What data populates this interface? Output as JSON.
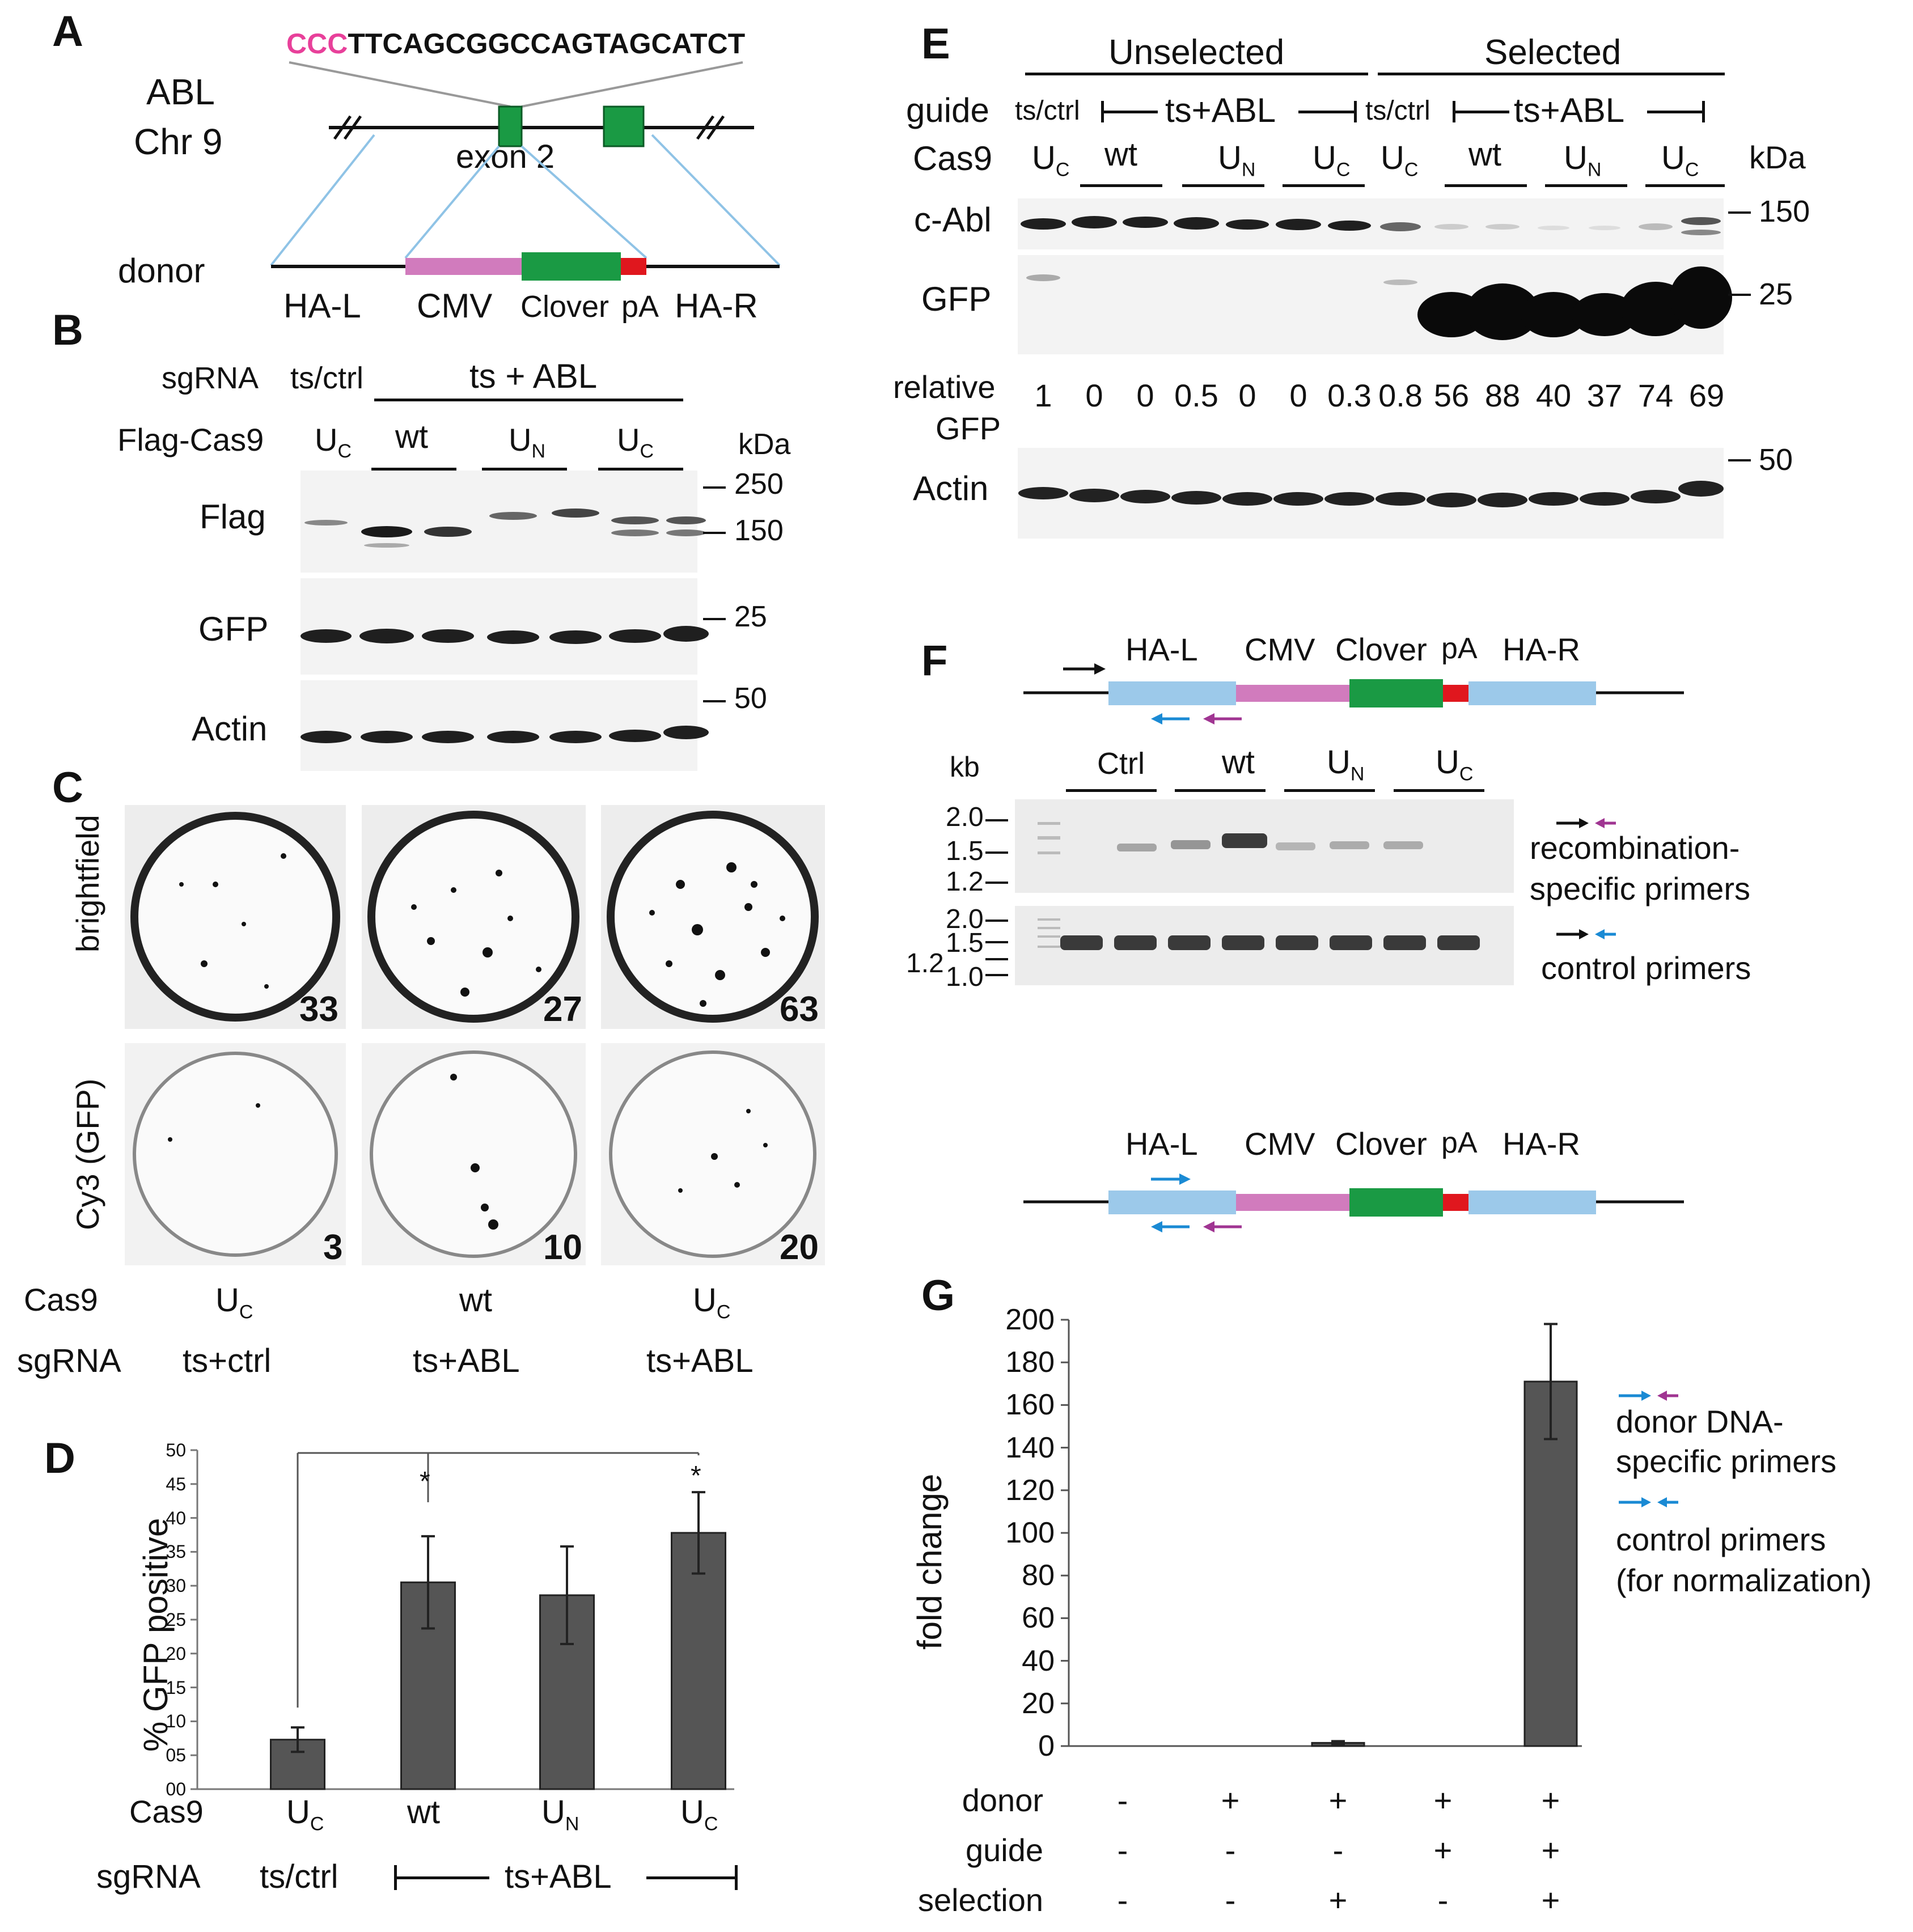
{
  "panels": {
    "a": "A",
    "b": "B",
    "c": "C",
    "d": "D",
    "e": "E",
    "f": "F",
    "g": "G"
  },
  "colors": {
    "cmv": "#d17bbd",
    "clover": "#1a9a44",
    "pA": "#e0171e",
    "ha": "#9cc9ea",
    "pink": "#e8409a",
    "blue_arrow": "#1a8ad4",
    "purple_arrow": "#a03592"
  },
  "panelA": {
    "seq_pink": "CCC",
    "seq_black": "TTCAGCGGCCAGTAGCATCT",
    "gene_line1": "ABL",
    "gene_line2": "Chr 9",
    "exon": "exon 2",
    "donor": "donor",
    "labels": {
      "hal": "HA-L",
      "cmv": "CMV",
      "clover": "Clover",
      "pa": "pA",
      "har": "HA-R"
    }
  },
  "panelB": {
    "sgrna_label": "sgRNA",
    "sgrna_ctrl": "ts/ctrl",
    "sgrna_abl": "ts + ABL",
    "cas9_label": "Flag-Cas9",
    "u": "U",
    "sub_c": "C",
    "sub_n": "N",
    "wt": "wt",
    "kda": "kDa",
    "rows": [
      "Flag",
      "GFP",
      "Actin"
    ],
    "markers": [
      "250",
      "150",
      "25",
      "50"
    ]
  },
  "panelC": {
    "row_labels": [
      "brightfield",
      "Cy3 (GFP)"
    ],
    "counts_bright": [
      "33",
      "27",
      "63"
    ],
    "counts_cy3": [
      "3",
      "10",
      "20"
    ],
    "cas9_label": "Cas9",
    "sgrna_label": "sgRNA",
    "cas9": [
      "U",
      "wt",
      "U"
    ],
    "cas9_sub": [
      "C",
      "",
      "C"
    ],
    "sgrna": [
      "ts+ctrl",
      "ts+ABL",
      "ts+ABL"
    ]
  },
  "panelD": {
    "ylabel": "% GFP positive",
    "yticks": [
      "50",
      "45",
      "40",
      "35",
      "30",
      "25",
      "20",
      "15",
      "10",
      "05",
      "00"
    ],
    "star": "*",
    "cas9_label": "Cas9",
    "sgrna_label": "sgRNA",
    "cas9": [
      "U",
      "wt",
      "U",
      "U"
    ],
    "cas9_sub": [
      "C",
      "",
      "N",
      "C"
    ],
    "sgrna_ctrl": "ts/ctrl",
    "sgrna_abl": "ts+ABL"
  },
  "panelE": {
    "unselected": "Unselected",
    "selected": "Selected",
    "guide_label": "guide",
    "guide_ctrl": "ts/ctrl",
    "guide_abl": "ts+ABL",
    "cas9_label": "Cas9",
    "u": "U",
    "wt": "wt",
    "sub_c": "C",
    "sub_n": "N",
    "kda": "kDa",
    "rows": [
      "c-Abl",
      "GFP",
      "Actin"
    ],
    "relative1": "relative",
    "relative2": "GFP",
    "relative_values": [
      "1",
      "0",
      "0",
      "0.5",
      "0",
      "0",
      "0.3",
      "0.8",
      "56",
      "88",
      "40",
      "37",
      "74",
      "69"
    ],
    "markers": [
      "150",
      "25",
      "50"
    ]
  },
  "panelF": {
    "kb": "kb",
    "groups": [
      "Ctrl",
      "wt",
      "U",
      "U"
    ],
    "group_sub": [
      "",
      "",
      "N",
      "C"
    ],
    "ladder_top": [
      "2.0",
      "1.5",
      "1.2"
    ],
    "ladder_bottom": [
      "2.0",
      "1.5",
      "1.2",
      "1.0"
    ],
    "recomb1": "recombination-",
    "recomb2": "specific primers",
    "control": "control primers",
    "labels": {
      "hal": "HA-L",
      "cmv": "CMV",
      "clover": "Clover",
      "pa": "pA",
      "har": "HA-R"
    }
  },
  "panelG": {
    "ylabel": "fold change",
    "yticks": [
      "200",
      "180",
      "160",
      "140",
      "120",
      "100",
      "80",
      "60",
      "40",
      "20",
      "0"
    ],
    "rows": [
      {
        "label": "donor",
        "values": [
          "-",
          "+",
          "+",
          "+",
          "+"
        ]
      },
      {
        "label": "guide",
        "values": [
          "-",
          "-",
          "-",
          "+",
          "+"
        ]
      },
      {
        "label": "selection",
        "values": [
          "-",
          "-",
          "+",
          "-",
          "+"
        ]
      }
    ],
    "legend_donor1": "donor DNA-",
    "legend_donor2": "specific primers",
    "legend_ctrl1": "control primers",
    "legend_ctrl2": "(for normalization)"
  },
  "chart_data": [
    {
      "type": "bar",
      "categories": [
        "UC ts/ctrl",
        "wt ts+ABL",
        "UN ts+ABL",
        "UC ts+ABL"
      ],
      "values": [
        7.3,
        30.5,
        28.6,
        37.8
      ],
      "errors": [
        1.8,
        6.8,
        7.2,
        6.0
      ],
      "ylabel": "% GFP positive",
      "ylim": [
        0,
        50
      ]
    },
    {
      "type": "bar",
      "categories": [
        "- - -",
        "+ - -",
        "+ - +",
        "+ + -",
        "+ + +"
      ],
      "values": [
        0,
        0,
        1.5,
        0,
        171
      ],
      "errors": [
        0,
        0,
        0.8,
        0,
        27
      ],
      "ylabel": "fold change",
      "ylim": [
        0,
        200
      ]
    }
  ]
}
